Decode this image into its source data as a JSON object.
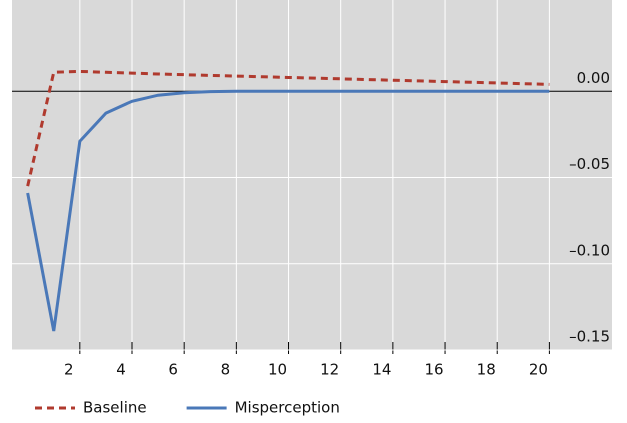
{
  "chart_data": {
    "type": "line",
    "x": [
      0,
      1,
      2,
      3,
      4,
      5,
      6,
      7,
      8,
      9,
      10,
      11,
      12,
      13,
      14,
      15,
      16,
      17,
      18,
      19,
      20
    ],
    "series": [
      {
        "name": "Baseline",
        "color": "#b03a2e",
        "dash": true,
        "values": [
          -0.055,
          0.011,
          0.0115,
          0.011,
          0.0105,
          0.01,
          0.0096,
          0.0092,
          0.0088,
          0.0084,
          0.008,
          0.0076,
          0.0072,
          0.0068,
          0.0064,
          0.006,
          0.0056,
          0.0052,
          0.0048,
          0.0044,
          0.004
        ]
      },
      {
        "name": "Misperception",
        "color": "#4a78b8",
        "dash": false,
        "values": [
          -0.059,
          -0.139,
          -0.029,
          -0.0127,
          -0.0058,
          -0.0023,
          -0.0009,
          -0.0002,
          0,
          0,
          0,
          0,
          0,
          0,
          0,
          0,
          0,
          0,
          0,
          0,
          0
        ]
      }
    ],
    "xlim": [
      -0.6,
      22.4
    ],
    "xticks": [
      2,
      4,
      6,
      8,
      10,
      12,
      14,
      16,
      18,
      20
    ],
    "ylim": [
      -0.15,
      0.05
    ],
    "yticks": [
      {
        "value": 0,
        "label": "0.00"
      },
      {
        "value": -0.05,
        "label": "–0.05"
      },
      {
        "value": -0.1,
        "label": "–0.10"
      },
      {
        "value": -0.15,
        "label": "–0.15"
      }
    ],
    "y_axis_side": "right",
    "grid": true,
    "background": "#d9d9d9"
  }
}
